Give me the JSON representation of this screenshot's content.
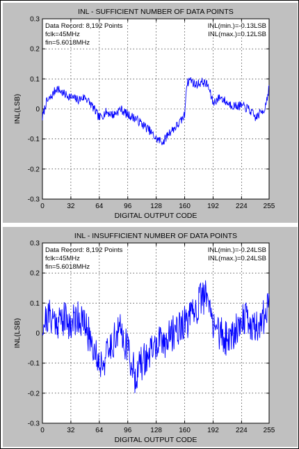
{
  "chart_data": [
    {
      "type": "line",
      "title": "INL - SUFFICIENT NUMBER OF DATA POINTS",
      "xlabel": "DIGITAL OUTPUT CODE",
      "ylabel": "INL(LSB)",
      "xlim": [
        0,
        255
      ],
      "ylim": [
        -0.3,
        0.3
      ],
      "xticks": [
        0,
        32,
        64,
        96,
        128,
        160,
        192,
        224,
        255
      ],
      "yticks": [
        -0.3,
        -0.2,
        -0.1,
        0,
        0.1,
        0.2,
        0.3
      ],
      "grid": true,
      "line_color": "#0000ff",
      "annotations_left": [
        "Data Record: 8,192 Points",
        "fclk=45MHz",
        "fin=5.6018MHz"
      ],
      "annotations_right": [
        "INL(min.)=-0.13LSB",
        "INL(max.)=0.12LSB"
      ],
      "noise": 0.015,
      "seed": 7,
      "trend": [
        [
          0,
          -0.03
        ],
        [
          4,
          0.02
        ],
        [
          10,
          0.04
        ],
        [
          16,
          0.07
        ],
        [
          24,
          0.05
        ],
        [
          32,
          0.04
        ],
        [
          40,
          0.03
        ],
        [
          48,
          0.04
        ],
        [
          56,
          0.01
        ],
        [
          64,
          -0.03
        ],
        [
          72,
          -0.01
        ],
        [
          80,
          -0.02
        ],
        [
          88,
          0.0
        ],
        [
          96,
          -0.02
        ],
        [
          104,
          -0.03
        ],
        [
          112,
          -0.05
        ],
        [
          120,
          -0.07
        ],
        [
          128,
          -0.1
        ],
        [
          136,
          -0.11
        ],
        [
          142,
          -0.08
        ],
        [
          150,
          -0.06
        ],
        [
          156,
          -0.04
        ],
        [
          160,
          -0.02
        ],
        [
          162,
          0.08
        ],
        [
          166,
          0.1
        ],
        [
          172,
          0.08
        ],
        [
          180,
          0.09
        ],
        [
          186,
          0.08
        ],
        [
          192,
          0.02
        ],
        [
          200,
          0.04
        ],
        [
          208,
          0.02
        ],
        [
          216,
          0.01
        ],
        [
          224,
          0.01
        ],
        [
          232,
          0.0
        ],
        [
          240,
          -0.03
        ],
        [
          246,
          -0.01
        ],
        [
          250,
          0.0
        ],
        [
          255,
          0.07
        ]
      ]
    },
    {
      "type": "line",
      "title": "INL - INSUFFICIENT NUMBER OF DATA POINTS",
      "xlabel": "DIGITAL OUTPUT CODE",
      "ylabel": "INL(LSB)",
      "xlim": [
        0,
        255
      ],
      "ylim": [
        -0.3,
        0.3
      ],
      "xticks": [
        0,
        32,
        64,
        96,
        128,
        160,
        192,
        224,
        255
      ],
      "yticks": [
        -0.3,
        -0.2,
        -0.1,
        0,
        0.1,
        0.2,
        0.3
      ],
      "grid": true,
      "line_color": "#0000ff",
      "annotations_left": [
        "Data Record: 8,192 Points",
        "fclk=45MHz",
        "fin=5.6018MHz"
      ],
      "annotations_right": [
        "INL(min.)=-0.24LSB",
        "INL(max.)=0.24LSB"
      ],
      "noise": 0.06,
      "seed": 21,
      "trend": [
        [
          0,
          0.03
        ],
        [
          8,
          0.06
        ],
        [
          16,
          0.04
        ],
        [
          24,
          0.05
        ],
        [
          32,
          0.03
        ],
        [
          40,
          0.06
        ],
        [
          48,
          0.02
        ],
        [
          56,
          -0.03
        ],
        [
          64,
          -0.1
        ],
        [
          72,
          -0.08
        ],
        [
          80,
          -0.02
        ],
        [
          88,
          0.01
        ],
        [
          96,
          -0.05
        ],
        [
          104,
          -0.14
        ],
        [
          112,
          -0.1
        ],
        [
          120,
          -0.07
        ],
        [
          128,
          -0.04
        ],
        [
          136,
          -0.03
        ],
        [
          144,
          -0.01
        ],
        [
          152,
          0.02
        ],
        [
          160,
          0.03
        ],
        [
          168,
          0.05
        ],
        [
          176,
          0.1
        ],
        [
          184,
          0.13
        ],
        [
          190,
          0.05
        ],
        [
          196,
          0.02
        ],
        [
          204,
          -0.02
        ],
        [
          212,
          -0.01
        ],
        [
          220,
          0.03
        ],
        [
          228,
          0.05
        ],
        [
          236,
          0.02
        ],
        [
          244,
          0.03
        ],
        [
          250,
          0.06
        ],
        [
          255,
          0.1
        ]
      ]
    }
  ]
}
